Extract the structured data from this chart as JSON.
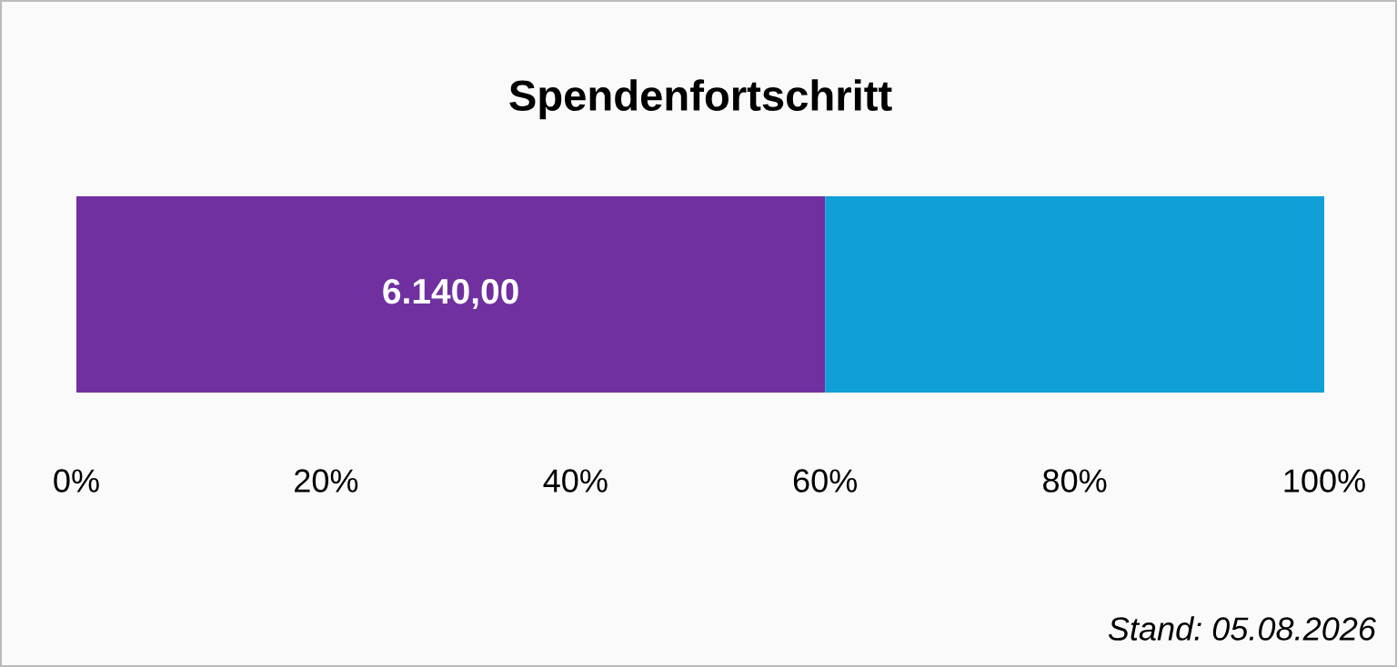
{
  "chart_data": {
    "type": "bar",
    "title": "Spendenfortschritt",
    "orientation": "horizontal",
    "stacked": true,
    "categories": [
      null
    ],
    "series": [
      {
        "color": "#7030a0",
        "values": [
          60
        ]
      },
      {
        "color": "#119fd8",
        "values": [
          40
        ]
      }
    ],
    "xlim": [
      0,
      100
    ],
    "xticks": [
      {
        "value": 0,
        "label": "0%"
      },
      {
        "value": 20,
        "label": "20%"
      },
      {
        "value": 40,
        "label": "40%"
      },
      {
        "value": 60,
        "label": "60%"
      },
      {
        "value": 80,
        "label": "80%"
      },
      {
        "value": 100,
        "label": "100%"
      }
    ],
    "grid": false,
    "legend": false,
    "tick_labels": "x",
    "annotations": [
      "6.140,00",
      "Stand: 05.08.2026"
    ]
  }
}
